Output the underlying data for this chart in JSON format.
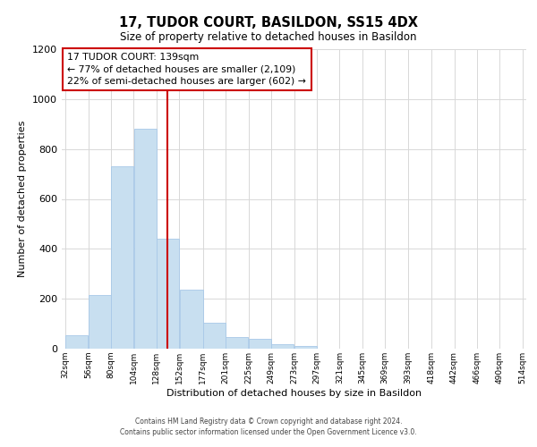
{
  "title": "17, TUDOR COURT, BASILDON, SS15 4DX",
  "subtitle": "Size of property relative to detached houses in Basildon",
  "xlabel": "Distribution of detached houses by size in Basildon",
  "ylabel": "Number of detached properties",
  "property_line_x": 139,
  "property_label": "17 TUDOR COURT: 139sqm",
  "annotation_line1": "← 77% of detached houses are smaller (2,109)",
  "annotation_line2": "22% of semi-detached houses are larger (602) →",
  "bar_color": "#c8dff0",
  "bar_edge_color": "#a8c8e8",
  "line_color": "#cc0000",
  "annotation_box_edge": "#cc0000",
  "background_color": "#ffffff",
  "grid_color": "#d8d8d8",
  "bin_edges": [
    32,
    56,
    80,
    104,
    128,
    152,
    177,
    201,
    225,
    249,
    273,
    297,
    321,
    345,
    369,
    393,
    418,
    442,
    466,
    490,
    514
  ],
  "bar_heights": [
    55,
    215,
    730,
    880,
    440,
    235,
    105,
    48,
    38,
    18,
    10,
    0,
    0,
    0,
    0,
    0,
    0,
    0,
    0,
    0
  ],
  "ylim": [
    0,
    1200
  ],
  "yticks": [
    0,
    200,
    400,
    600,
    800,
    1000,
    1200
  ],
  "footer_line1": "Contains HM Land Registry data © Crown copyright and database right 2024.",
  "footer_line2": "Contains public sector information licensed under the Open Government Licence v3.0."
}
